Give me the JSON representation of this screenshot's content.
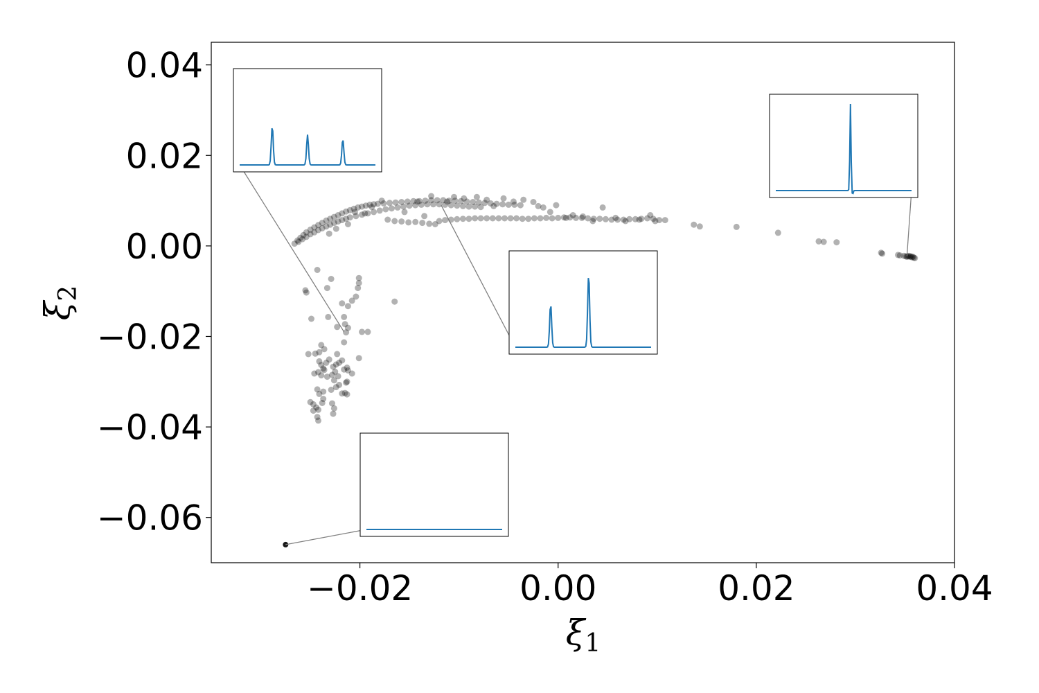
{
  "chart_data": {
    "type": "scatter",
    "title": "",
    "xlabel": "ξ",
    "xlabel_sub": "1",
    "ylabel": "ξ",
    "ylabel_sub": "2",
    "xlim": [
      -0.035,
      0.04
    ],
    "ylim": [
      -0.07,
      0.045
    ],
    "grid": false,
    "x_ticks": [
      -0.02,
      0.0,
      0.02,
      0.04
    ],
    "x_tick_labels": [
      "−0.02",
      "0.00",
      "0.02",
      "0.04"
    ],
    "y_ticks": [
      0.04,
      0.02,
      0.0,
      -0.02,
      -0.04,
      -0.06
    ],
    "y_tick_labels": [
      "0.04",
      "0.02",
      "0.00",
      "−0.02",
      "−0.04",
      "−0.06"
    ],
    "point_color": "#000000",
    "point_alpha": 0.3,
    "inset_line_color": "#1f77b4",
    "connector_color": "#808080",
    "insets": [
      {
        "name": "three-peaks",
        "anchor": [
          -0.0216,
          -0.019
        ],
        "peaks": [
          [
            0.24,
            0.45
          ],
          [
            0.5,
            0.35
          ],
          [
            0.76,
            0.3
          ]
        ]
      },
      {
        "name": "single-spike",
        "anchor": [
          0.0352,
          -0.0023
        ],
        "peaks": [
          [
            0.55,
            1.0
          ]
        ]
      },
      {
        "name": "two-peaks",
        "anchor": [
          -0.0118,
          0.009
        ],
        "peaks": [
          [
            0.26,
            0.5
          ],
          [
            0.54,
            0.85
          ]
        ]
      },
      {
        "name": "flat",
        "anchor": [
          -0.0275,
          -0.066
        ],
        "peaks": []
      }
    ],
    "points": [
      [
        -0.0266,
        0.0005
      ],
      [
        -0.0263,
        0.0012
      ],
      [
        -0.026,
        0.0018
      ],
      [
        -0.0257,
        0.0024
      ],
      [
        -0.0254,
        0.003
      ],
      [
        -0.025,
        0.0036
      ],
      [
        -0.0246,
        0.0041
      ],
      [
        -0.0242,
        0.0046
      ],
      [
        -0.0238,
        0.0051
      ],
      [
        -0.0234,
        0.0056
      ],
      [
        -0.023,
        0.006
      ],
      [
        -0.0226,
        0.0064
      ],
      [
        -0.0222,
        0.0068
      ],
      [
        -0.0218,
        0.0072
      ],
      [
        -0.0214,
        0.0076
      ],
      [
        -0.021,
        0.0079
      ],
      [
        -0.0206,
        0.0082
      ],
      [
        -0.0202,
        0.0085
      ],
      [
        -0.0198,
        0.0087
      ],
      [
        -0.0194,
        0.0089
      ],
      [
        -0.019,
        0.0091
      ],
      [
        -0.0186,
        0.0092
      ],
      [
        -0.0182,
        0.0093
      ],
      [
        -0.0176,
        0.0094
      ],
      [
        -0.017,
        0.0095
      ],
      [
        -0.0164,
        0.0096
      ],
      [
        -0.0158,
        0.0097
      ],
      [
        -0.0152,
        0.0098
      ],
      [
        -0.0146,
        0.0099
      ],
      [
        -0.014,
        0.0099
      ],
      [
        -0.0134,
        0.01
      ],
      [
        -0.0128,
        0.0101
      ],
      [
        -0.0122,
        0.0101
      ],
      [
        -0.0116,
        0.0101
      ],
      [
        -0.011,
        0.01
      ],
      [
        -0.0104,
        0.01
      ],
      [
        -0.0098,
        0.0099
      ],
      [
        -0.0092,
        0.0098
      ],
      [
        -0.0086,
        0.0097
      ],
      [
        -0.008,
        0.0096
      ],
      [
        -0.0074,
        0.0095
      ],
      [
        -0.0068,
        0.0094
      ],
      [
        -0.0062,
        0.0093
      ],
      [
        -0.0056,
        0.0092
      ],
      [
        -0.005,
        0.0091
      ],
      [
        -0.0044,
        0.0091
      ],
      [
        -0.0038,
        0.009
      ],
      [
        -0.0262,
        0.0009
      ],
      [
        -0.0258,
        0.0015
      ],
      [
        -0.0254,
        0.002
      ],
      [
        -0.025,
        0.0026
      ],
      [
        -0.0246,
        0.003
      ],
      [
        -0.0242,
        0.0035
      ],
      [
        -0.0238,
        0.0039
      ],
      [
        -0.0234,
        0.0043
      ],
      [
        -0.023,
        0.0047
      ],
      [
        -0.0226,
        0.0051
      ],
      [
        -0.0222,
        0.0054
      ],
      [
        -0.0218,
        0.0057
      ],
      [
        -0.0214,
        0.006
      ],
      [
        -0.021,
        0.0063
      ],
      [
        -0.0204,
        0.0066
      ],
      [
        -0.0198,
        0.0069
      ],
      [
        -0.0192,
        0.0072
      ],
      [
        -0.0186,
        0.0075
      ],
      [
        -0.018,
        0.0078
      ],
      [
        -0.0174,
        0.0081
      ],
      [
        -0.0168,
        0.0083
      ],
      [
        -0.0162,
        0.0085
      ],
      [
        -0.0156,
        0.0087
      ],
      [
        -0.015,
        0.0089
      ],
      [
        -0.0144,
        0.009
      ],
      [
        -0.0138,
        0.0091
      ],
      [
        -0.0132,
        0.0092
      ],
      [
        -0.0126,
        0.0092
      ],
      [
        -0.012,
        0.0092
      ],
      [
        -0.0114,
        0.0091
      ],
      [
        -0.0108,
        0.009
      ],
      [
        -0.0102,
        0.0089
      ],
      [
        -0.0096,
        0.0088
      ],
      [
        -0.009,
        0.0087
      ],
      [
        -0.0084,
        0.0087
      ],
      [
        -0.0078,
        0.0086
      ],
      [
        -0.012,
        0.0055
      ],
      [
        -0.0114,
        0.0057
      ],
      [
        -0.0108,
        0.0058
      ],
      [
        -0.0102,
        0.0059
      ],
      [
        -0.0096,
        0.006
      ],
      [
        -0.009,
        0.006
      ],
      [
        -0.0084,
        0.0061
      ],
      [
        -0.0078,
        0.0061
      ],
      [
        -0.0072,
        0.0061
      ],
      [
        -0.0066,
        0.0061
      ],
      [
        -0.006,
        0.0061
      ],
      [
        -0.0054,
        0.0061
      ],
      [
        -0.0048,
        0.0061
      ],
      [
        -0.0042,
        0.0061
      ],
      [
        -0.0036,
        0.006
      ],
      [
        -0.003,
        0.006
      ],
      [
        -0.0024,
        0.0061
      ],
      [
        -0.0018,
        0.0061
      ],
      [
        -0.0012,
        0.0062
      ],
      [
        -0.0006,
        0.0061
      ],
      [
        0.0,
        0.0062
      ],
      [
        0.0006,
        0.0063
      ],
      [
        0.0012,
        0.0063
      ],
      [
        0.0018,
        0.0062
      ],
      [
        0.0024,
        0.0062
      ],
      [
        0.003,
        0.0061
      ],
      [
        0.0036,
        0.006
      ],
      [
        0.0042,
        0.006
      ],
      [
        0.0048,
        0.0059
      ],
      [
        0.0054,
        0.0058
      ],
      [
        0.006,
        0.0058
      ],
      [
        0.0066,
        0.0058
      ],
      [
        0.0072,
        0.0059
      ],
      [
        0.0078,
        0.0059
      ],
      [
        0.0084,
        0.006
      ],
      [
        0.009,
        0.0061
      ],
      [
        0.0096,
        0.006
      ],
      [
        0.0102,
        0.0057
      ],
      [
        0.0108,
        0.0057
      ],
      [
        -0.0165,
        0.0055
      ],
      [
        -0.0158,
        0.0054
      ],
      [
        -0.0151,
        0.0052
      ],
      [
        -0.0144,
        0.0053
      ],
      [
        -0.0137,
        0.0051
      ],
      [
        -0.013,
        0.0049
      ],
      [
        -0.0124,
        0.0048
      ],
      [
        -0.0135,
        0.0066
      ],
      [
        -0.0155,
        0.0075
      ],
      [
        -0.0172,
        0.0058
      ],
      [
        -0.0195,
        0.0072
      ],
      [
        -0.0205,
        0.0075
      ],
      [
        -0.0212,
        0.0048
      ],
      [
        -0.0224,
        0.0038
      ],
      [
        -0.0231,
        0.0027
      ],
      [
        -0.0055,
        0.0105
      ],
      [
        -0.0045,
        0.0098
      ],
      [
        -0.0035,
        0.0102
      ],
      [
        -0.0025,
        0.0097
      ],
      [
        -0.002,
        0.0088
      ],
      [
        -0.0015,
        0.0085
      ],
      [
        -0.0008,
        0.0075
      ],
      [
        -0.0002,
        0.009
      ],
      [
        0.0008,
        0.0062
      ],
      [
        0.0015,
        0.0068
      ],
      [
        0.0025,
        0.0065
      ],
      [
        0.0035,
        0.0055
      ],
      [
        0.0045,
        0.0085
      ],
      [
        0.0058,
        0.0062
      ],
      [
        0.0068,
        0.0055
      ],
      [
        0.0082,
        0.0058
      ],
      [
        0.0093,
        0.0068
      ],
      [
        0.0098,
        0.0055
      ],
      [
        -0.0065,
        0.0088
      ],
      [
        -0.0072,
        0.0102
      ],
      [
        -0.0082,
        0.0108
      ],
      [
        -0.0095,
        0.0105
      ],
      [
        -0.0105,
        0.0108
      ],
      [
        -0.0112,
        0.0098
      ],
      [
        -0.0128,
        0.011
      ],
      [
        -0.0142,
        0.0098
      ],
      [
        -0.0188,
        0.0086
      ],
      [
        -0.0178,
        0.01
      ],
      [
        0.0137,
        0.0047
      ],
      [
        0.0143,
        0.0043
      ],
      [
        0.018,
        0.0042
      ],
      [
        0.0222,
        0.0029
      ],
      [
        0.0263,
        0.001
      ],
      [
        0.0268,
        0.0009
      ],
      [
        0.0281,
        0.0008
      ],
      [
        0.0326,
        -0.0015
      ],
      [
        0.0327,
        -0.0017
      ],
      [
        0.0343,
        -0.002
      ],
      [
        0.0345,
        -0.0021
      ],
      [
        0.0349,
        -0.0022
      ],
      [
        0.0351,
        -0.0023
      ],
      [
        0.0353,
        -0.0023
      ],
      [
        0.0355,
        -0.0024
      ],
      [
        0.0357,
        -0.0025
      ],
      [
        0.0359,
        -0.0026
      ],
      [
        0.036,
        -0.0027
      ],
      [
        0.0352,
        -0.0024
      ],
      [
        0.0354,
        -0.0022
      ],
      [
        0.0356,
        -0.0023
      ],
      [
        0.0358,
        -0.0024
      ],
      [
        -0.0255,
        -0.0098
      ],
      [
        -0.0254,
        -0.0103
      ],
      [
        -0.0243,
        -0.0053
      ],
      [
        -0.0229,
        -0.0073
      ],
      [
        -0.0233,
        -0.0093
      ],
      [
        -0.0218,
        -0.0127
      ],
      [
        -0.0212,
        -0.0133
      ],
      [
        -0.0208,
        -0.0121
      ],
      [
        -0.0204,
        -0.0112
      ],
      [
        -0.0202,
        -0.0093
      ],
      [
        -0.0201,
        -0.0082
      ],
      [
        -0.0201,
        -0.0071
      ],
      [
        -0.0165,
        -0.0123
      ],
      [
        -0.0249,
        -0.0161
      ],
      [
        -0.0232,
        -0.0157
      ],
      [
        -0.0223,
        -0.0179
      ],
      [
        -0.0216,
        -0.0157
      ],
      [
        -0.0215,
        -0.0173
      ],
      [
        -0.0214,
        -0.0191
      ],
      [
        -0.0212,
        -0.0181
      ],
      [
        -0.0198,
        -0.019
      ],
      [
        -0.0192,
        -0.019
      ],
      [
        -0.0216,
        -0.0213
      ],
      [
        -0.0252,
        -0.0239
      ],
      [
        -0.0245,
        -0.0238
      ],
      [
        -0.0241,
        -0.0235
      ],
      [
        -0.0239,
        -0.0219
      ],
      [
        -0.0236,
        -0.0228
      ],
      [
        -0.0241,
        -0.0255
      ],
      [
        -0.0239,
        -0.0263
      ],
      [
        -0.0237,
        -0.0271
      ],
      [
        -0.0234,
        -0.0258
      ],
      [
        -0.0231,
        -0.0251
      ],
      [
        -0.0227,
        -0.0267
      ],
      [
        -0.0224,
        -0.0262
      ],
      [
        -0.0221,
        -0.0258
      ],
      [
        -0.0218,
        -0.0253
      ],
      [
        -0.0223,
        -0.0239
      ],
      [
        -0.0201,
        -0.0248
      ],
      [
        -0.0246,
        -0.0282
      ],
      [
        -0.0242,
        -0.0279
      ],
      [
        -0.0239,
        -0.0286
      ],
      [
        -0.0236,
        -0.0274
      ],
      [
        -0.0233,
        -0.0289
      ],
      [
        -0.0228,
        -0.0285
      ],
      [
        -0.0225,
        -0.0278
      ],
      [
        -0.0222,
        -0.0288
      ],
      [
        -0.0216,
        -0.0273
      ],
      [
        -0.0213,
        -0.0269
      ],
      [
        -0.0212,
        -0.0275
      ],
      [
        -0.0208,
        -0.0282
      ],
      [
        -0.0226,
        -0.0297
      ],
      [
        -0.0221,
        -0.0307
      ],
      [
        -0.0214,
        -0.0302
      ],
      [
        -0.0213,
        -0.03
      ],
      [
        -0.0243,
        -0.0317
      ],
      [
        -0.0237,
        -0.0322
      ],
      [
        -0.0229,
        -0.0318
      ],
      [
        -0.0224,
        -0.0312
      ],
      [
        -0.0218,
        -0.0326
      ],
      [
        -0.0215,
        -0.0325
      ],
      [
        -0.0213,
        -0.0328
      ],
      [
        -0.0241,
        -0.0327
      ],
      [
        -0.0237,
        -0.0338
      ],
      [
        -0.025,
        -0.0345
      ],
      [
        -0.0247,
        -0.035
      ],
      [
        -0.0247,
        -0.0364
      ],
      [
        -0.0244,
        -0.0357
      ],
      [
        -0.0238,
        -0.0347
      ],
      [
        -0.0228,
        -0.0348
      ],
      [
        -0.0242,
        -0.0362
      ],
      [
        -0.0243,
        -0.0378
      ],
      [
        -0.0242,
        -0.0386
      ],
      [
        -0.0227,
        -0.0371
      ],
      [
        -0.0226,
        -0.0359
      ],
      [
        -0.0275,
        -0.066
      ]
    ]
  }
}
